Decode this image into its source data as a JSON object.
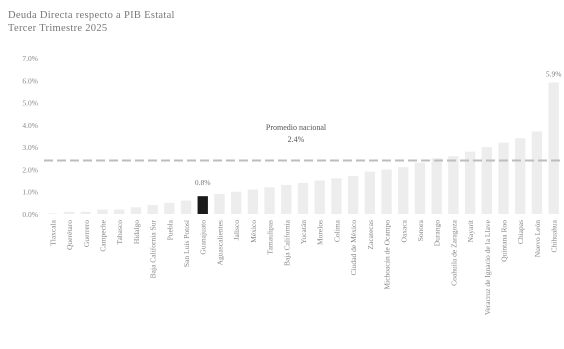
{
  "chart_data": {
    "type": "bar",
    "title": "Deuda Directa respecto a PIB Estatal",
    "subtitle": "Tercer Trimestre 2025",
    "xlabel": "",
    "ylabel": "",
    "ylim": [
      0,
      7
    ],
    "yticks": [
      "0.0%",
      "1.0%",
      "2.0%",
      "3.0%",
      "4.0%",
      "5.0%",
      "6.0%",
      "7.0%"
    ],
    "categories": [
      "Tlaxcala",
      "Querétaro",
      "Guerrero",
      "Campeche",
      "Tabasco",
      "Hidalgo",
      "Baja California Sur",
      "Puebla",
      "San Luis Potosí",
      "Guanajuato",
      "Aguascalientes",
      "Jalisco",
      "México",
      "Tamaulipas",
      "Baja California",
      "Yucatán",
      "Morelos",
      "Colima",
      "Ciudad de México",
      "Zacatecas",
      "Michoacán de Ocampo",
      "Oaxaca",
      "Sonora",
      "Durango",
      "Coahuila de Zaragoza",
      "Nayarit",
      "Veracruz de Ignacio de la Llave",
      "Quintana Roo",
      "Chiapas",
      "Nuevo León",
      "Chihuahua"
    ],
    "values": [
      0.0,
      0.1,
      0.1,
      0.2,
      0.2,
      0.3,
      0.4,
      0.5,
      0.6,
      0.8,
      0.9,
      1.0,
      1.1,
      1.2,
      1.3,
      1.4,
      1.5,
      1.6,
      1.7,
      1.9,
      2.0,
      2.1,
      2.3,
      2.5,
      2.6,
      2.8,
      3.0,
      3.2,
      3.4,
      3.7,
      5.9
    ],
    "highlight_index": 9,
    "highlight_label": "0.8%",
    "last_label": "5.9%",
    "reference_line": {
      "value": 2.4,
      "label": "Promedio nacional",
      "value_label": "2.4%"
    },
    "colors": {
      "bar": "#ededed",
      "highlight": "#1a1a1a",
      "reference": "#bdbdbd",
      "text": "#888888"
    },
    "grid": false,
    "legend": "none"
  }
}
